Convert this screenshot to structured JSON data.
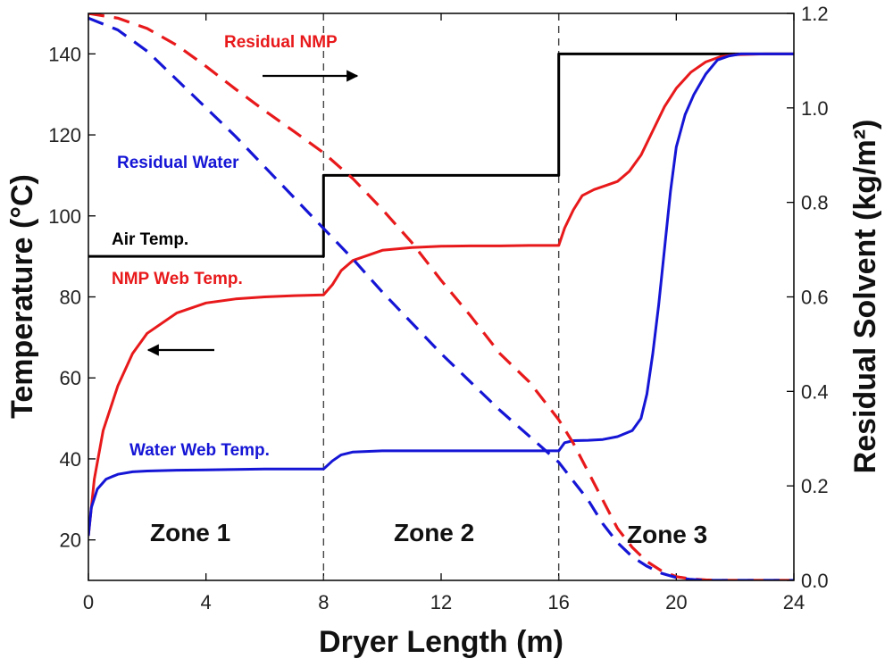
{
  "chart_data": {
    "type": "line",
    "xlabel": "Dryer Length (m)",
    "ylabel_left": "Temperature (°C)",
    "ylabel_right": "Residual Solvent (kg/m²)",
    "xlim": [
      0,
      24
    ],
    "ylim_left": [
      10,
      150
    ],
    "ylim_right": [
      0,
      1.2
    ],
    "x_ticks": [
      0,
      4,
      8,
      12,
      16,
      20,
      24
    ],
    "x_tick_labels": [
      "0",
      "4",
      "8",
      "12",
      "16",
      "20",
      "24"
    ],
    "y_left_ticks": [
      20,
      40,
      60,
      80,
      100,
      120,
      140
    ],
    "y_left_tick_labels": [
      "20",
      "40",
      "60",
      "80",
      "100",
      "120",
      "140"
    ],
    "y_right_ticks": [
      0,
      0.2,
      0.4,
      0.6,
      0.8,
      1.0,
      1.2
    ],
    "y_right_tick_labels": [
      "0.0",
      "0.2",
      "0.4",
      "0.6",
      "0.8",
      "1.0",
      "1.2"
    ],
    "zone_boundaries": [
      8,
      16
    ],
    "series": [
      {
        "name": "Air Temp.",
        "axis": "left",
        "style": "solid",
        "color": "#000000",
        "x": [
          0,
          8,
          8,
          16,
          16,
          24
        ],
        "y": [
          90,
          90,
          110,
          110,
          140,
          140
        ]
      },
      {
        "name": "NMP Web Temp.",
        "axis": "left",
        "style": "solid",
        "color": "#e8191b",
        "x": [
          0,
          0.2,
          0.5,
          1,
          1.5,
          2,
          3,
          4,
          5,
          6,
          7,
          8,
          8.3,
          8.6,
          9,
          10,
          11,
          12,
          13,
          14,
          15,
          16,
          16.2,
          16.5,
          16.8,
          17.2,
          17.6,
          18,
          18.4,
          18.8,
          19.2,
          19.6,
          20,
          20.5,
          21,
          21.5,
          22,
          23,
          24
        ],
        "y": [
          21,
          35,
          47,
          58,
          66,
          71,
          76,
          78.5,
          79.5,
          80,
          80.3,
          80.5,
          83,
          86.5,
          89,
          91.5,
          92.2,
          92.5,
          92.6,
          92.6,
          92.7,
          92.7,
          97,
          101.5,
          105,
          106.5,
          107.5,
          108.5,
          111,
          115,
          121,
          127,
          131.5,
          135.5,
          138,
          139.3,
          139.8,
          140,
          140
        ]
      },
      {
        "name": "Water Web Temp.",
        "axis": "left",
        "style": "solid",
        "color": "#1515d6",
        "x": [
          0,
          0.1,
          0.3,
          0.6,
          1,
          1.5,
          2,
          3,
          4,
          5,
          6,
          7,
          8,
          8.3,
          8.6,
          9,
          10,
          11,
          12,
          13,
          14,
          15,
          16,
          16.2,
          16.5,
          17,
          17.5,
          18,
          18.5,
          18.8,
          19,
          19.2,
          19.4,
          19.6,
          19.8,
          20,
          20.3,
          20.6,
          21,
          21.4,
          21.8,
          22.2,
          23,
          24
        ],
        "y": [
          21,
          28,
          32.5,
          35,
          36.2,
          36.8,
          37,
          37.2,
          37.3,
          37.4,
          37.5,
          37.5,
          37.5,
          39.5,
          41,
          41.7,
          42,
          42,
          42,
          42,
          42,
          42,
          42,
          44,
          44.5,
          44.6,
          44.8,
          45.5,
          47,
          50,
          56,
          66,
          78,
          92,
          106,
          117,
          125,
          130,
          135,
          138.5,
          139.5,
          140,
          140,
          140
        ]
      },
      {
        "name": "Residual NMP",
        "axis": "right",
        "style": "dashed",
        "color": "#e8191b",
        "x": [
          0,
          1,
          2,
          3,
          4,
          5,
          6,
          7,
          8,
          9,
          10,
          11,
          12,
          13,
          14,
          15,
          16,
          16.5,
          17,
          17.5,
          18,
          18.5,
          19,
          19.5,
          20,
          20.5,
          21,
          21.5,
          22,
          23,
          24
        ],
        "y": [
          1.2,
          1.19,
          1.168,
          1.133,
          1.088,
          1.04,
          0.994,
          0.95,
          0.905,
          0.85,
          0.785,
          0.715,
          0.635,
          0.56,
          0.48,
          0.42,
          0.34,
          0.29,
          0.23,
          0.17,
          0.11,
          0.07,
          0.04,
          0.02,
          0.008,
          0.003,
          0.001,
          0.0,
          0.0,
          0.0,
          0.0
        ]
      },
      {
        "name": "Residual Water",
        "axis": "right",
        "style": "dashed",
        "color": "#1515d6",
        "x": [
          0,
          1,
          2,
          3,
          4,
          5,
          6,
          7,
          8,
          9,
          10,
          11,
          12,
          13,
          14,
          15,
          16,
          16.5,
          17,
          17.5,
          18,
          18.5,
          19,
          19.5,
          20,
          20.5,
          21,
          21.5,
          22,
          23,
          24
        ],
        "y": [
          1.19,
          1.165,
          1.12,
          1.06,
          1.0,
          0.94,
          0.875,
          0.81,
          0.745,
          0.68,
          0.61,
          0.545,
          0.48,
          0.42,
          0.36,
          0.305,
          0.25,
          0.21,
          0.17,
          0.12,
          0.08,
          0.05,
          0.03,
          0.015,
          0.006,
          0.002,
          0.0,
          0.0,
          0.0,
          0.0,
          0.0
        ]
      }
    ],
    "annotations": [
      {
        "text": "Residual NMP",
        "color": "#e8191b"
      },
      {
        "text": "Residual Water",
        "color": "#1515d6"
      },
      {
        "text": "Air Temp.",
        "color": "#000000"
      },
      {
        "text": "NMP Web Temp.",
        "color": "#e8191b"
      },
      {
        "text": "Water Web Temp.",
        "color": "#1515d6"
      },
      {
        "text": "Zone 1",
        "color": "#111111"
      },
      {
        "text": "Zone 2",
        "color": "#111111"
      },
      {
        "text": "Zone 3",
        "color": "#111111"
      }
    ]
  }
}
